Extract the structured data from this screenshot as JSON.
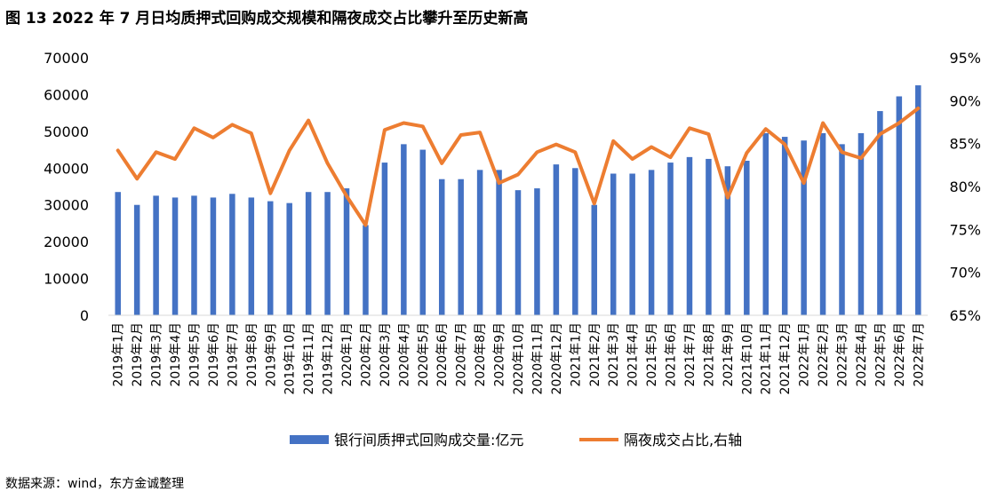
{
  "figure": {
    "title": "图 13  2022 年 7 月日均质押式回购成交规模和隔夜成交占比攀升至历史新高",
    "source": "数据来源：wind，东方金诚整理"
  },
  "colors": {
    "bar": "#4472C4",
    "line": "#ED7D31",
    "axis": "#D9D9D9",
    "text": "#000000"
  },
  "chart_data": {
    "type": "bar",
    "categories": [
      "2019年1月",
      "2019年2月",
      "2019年3月",
      "2019年4月",
      "2019年5月",
      "2019年6月",
      "2019年7月",
      "2019年8月",
      "2019年9月",
      "2019年10月",
      "2019年11月",
      "2019年12月",
      "2020年1月",
      "2020年2月",
      "2020年3月",
      "2020年4月",
      "2020年5月",
      "2020年6月",
      "2020年7月",
      "2020年8月",
      "2020年9月",
      "2020年10月",
      "2020年11月",
      "2020年12月",
      "2021年1月",
      "2021年2月",
      "2021年3月",
      "2021年4月",
      "2021年5月",
      "2021年6月",
      "2021年7月",
      "2021年8月",
      "2021年9月",
      "2021年10月",
      "2021年11月",
      "2021年12月",
      "2022年1月",
      "2022年2月",
      "2022年3月",
      "2022年4月",
      "2022年5月",
      "2022年6月",
      "2022年7月"
    ],
    "series": [
      {
        "name": "银行间质押式回购成交量:亿元",
        "type": "bar",
        "axis": "left",
        "values": [
          33500,
          30000,
          32500,
          32000,
          32500,
          32000,
          33000,
          32000,
          31000,
          30500,
          33500,
          33500,
          34500,
          24500,
          41500,
          46500,
          45000,
          37000,
          37000,
          39500,
          39500,
          34000,
          34500,
          41000,
          40000,
          30000,
          38500,
          38500,
          39500,
          41500,
          43000,
          42500,
          40500,
          42000,
          49500,
          48500,
          47500,
          49500,
          46500,
          49500,
          55500,
          59500,
          62500
        ]
      },
      {
        "name": "隔夜成交占比,右轴",
        "type": "line",
        "axis": "right",
        "values": [
          84.2,
          80.9,
          84.0,
          83.2,
          86.8,
          85.7,
          87.2,
          86.2,
          79.2,
          84.2,
          87.7,
          82.7,
          78.9,
          75.5,
          86.6,
          87.4,
          87.0,
          82.7,
          86.0,
          86.3,
          80.4,
          81.4,
          84.0,
          84.9,
          84.0,
          78.0,
          85.3,
          83.2,
          84.6,
          83.4,
          86.8,
          86.1,
          78.7,
          83.9,
          86.7,
          84.9,
          80.4,
          87.4,
          84.0,
          83.3,
          86.1,
          87.4,
          89.1
        ]
      }
    ],
    "y_left": {
      "min": 0,
      "max": 70000,
      "ticks": [
        "0",
        "10000",
        "20000",
        "30000",
        "40000",
        "50000",
        "60000",
        "70000"
      ]
    },
    "y_right": {
      "min": 65,
      "max": 95,
      "ticks": [
        "65%",
        "70%",
        "75%",
        "80%",
        "85%",
        "90%",
        "95%"
      ]
    },
    "legend": {
      "placement": "bottom"
    },
    "grid": false
  }
}
